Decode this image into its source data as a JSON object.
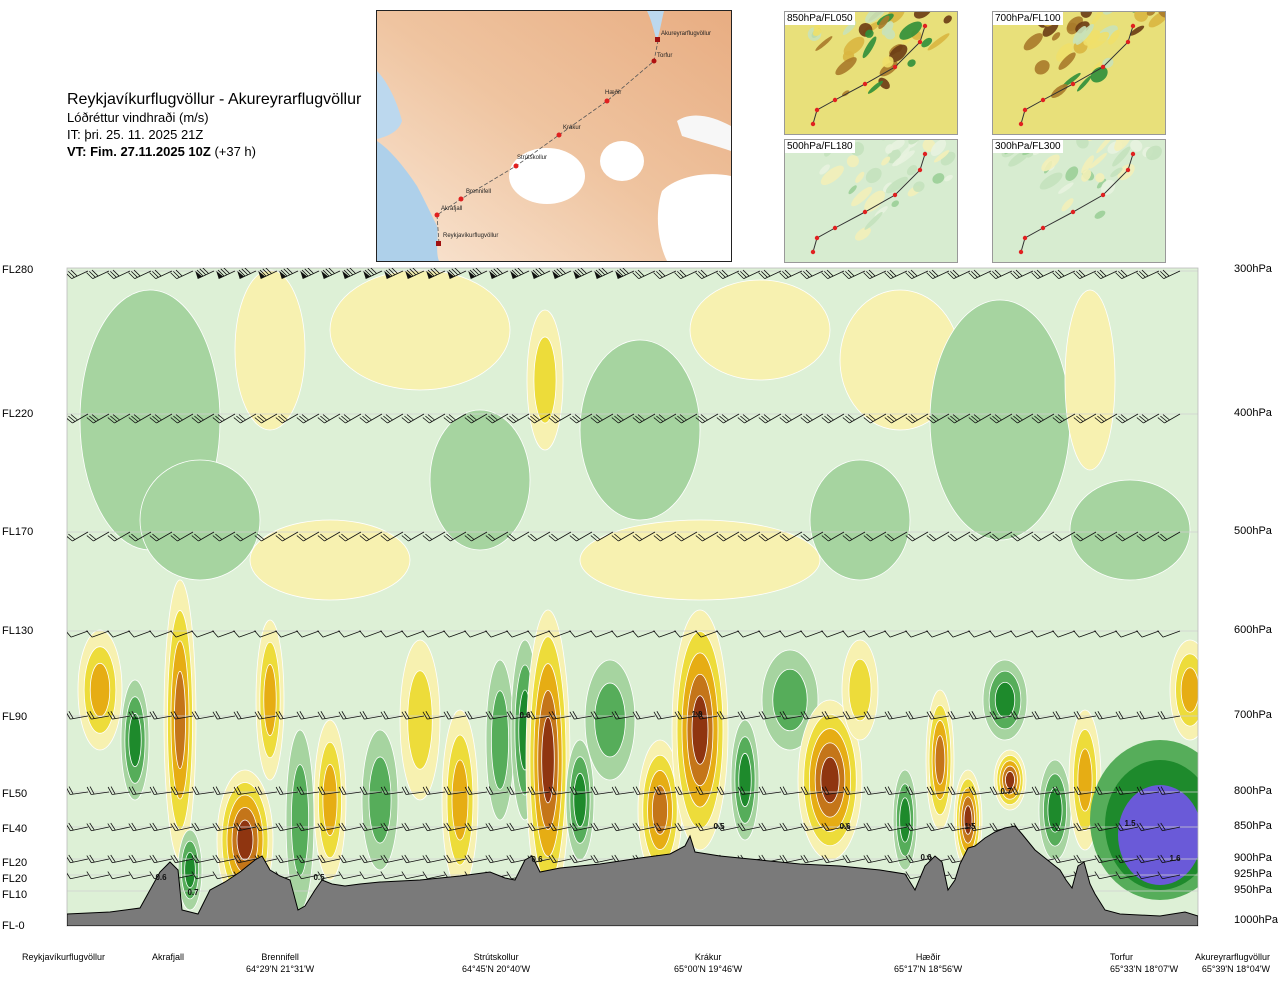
{
  "title": {
    "route": "Reykjavíkurflugvöllur - Akureyrarflugvöllur",
    "parameter": "Lóðréttur vindhraði (m/s)",
    "it": "IT: þri. 25. 11. 2025 21Z",
    "vt_bold": "VT: Fim. 27.11.2025 10Z",
    "vt_rest": "(+37 h)"
  },
  "map": {
    "waypoints": [
      "Akureyrarflugvöllur",
      "Torfur",
      "Hæðir",
      "Krákur",
      "Strútskollur",
      "Brennifell",
      "Akrafjall",
      "Reykjavíkurflugvöllur"
    ]
  },
  "minimaps": [
    {
      "label": "850hPa/FL050",
      "palette": "mixed"
    },
    {
      "label": "700hPa/FL100",
      "palette": "mixed"
    },
    {
      "label": "500hPa/FL180",
      "palette": "green"
    },
    {
      "label": "300hPa/FL300",
      "palette": "green"
    }
  ],
  "chart_data": {
    "type": "heatmap",
    "variable": "vertical wind speed (m/s)",
    "colors": {
      "strong_down": "#6a5ad8",
      "down3": "#1e8a2c",
      "down2": "#56ad5a",
      "down1": "#a6d4a0",
      "neutral": "#ddf0d6",
      "neutral_up": "#f7f1b0",
      "up1": "#eddc3a",
      "up2": "#e6ad14",
      "up3": "#c47519",
      "strong_up": "#8f3510",
      "terrain": "#7a7a7a"
    },
    "levels": [
      {
        "fl": "FL280",
        "hpa": "300hPa"
      },
      {
        "fl": "FL220",
        "hpa": "400hPa"
      },
      {
        "fl": "FL170",
        "hpa": "500hPa"
      },
      {
        "fl": "FL130",
        "hpa": "600hPa"
      },
      {
        "fl": "FL90",
        "hpa": "700hPa"
      },
      {
        "fl": "FL50",
        "hpa": "800hPa"
      },
      {
        "fl": "FL40",
        "hpa": "850hPa"
      },
      {
        "fl": "FL20",
        "hpa": "900hPa"
      },
      {
        "fl": "FL20",
        "hpa": "925hPa"
      },
      {
        "fl": "FL10",
        "hpa": "950hPa"
      },
      {
        "fl": "FL-0",
        "hpa": "1000hPa"
      }
    ],
    "locations": [
      {
        "name": "Reykjavíkurflugvöllur",
        "coord": ""
      },
      {
        "name": "Akrafjall",
        "coord": ""
      },
      {
        "name": "Brennifell",
        "coord": "64°29'N 21°31'W"
      },
      {
        "name": "Strútskollur",
        "coord": "64°45'N 20°40'W"
      },
      {
        "name": "Krákur",
        "coord": "65°00'N 19°46'W"
      },
      {
        "name": "Hæðir",
        "coord": "65°17'N 18°56'W"
      },
      {
        "name": "Torfur",
        "coord": "65°33'N 18°07'W"
      },
      {
        "name": "Akureyrarflugvöllur",
        "coord": "65°39'N 18°04'W"
      }
    ],
    "value_labels": [
      "0.6",
      "0.7",
      "0.5",
      "0.6",
      "0.6",
      "1.0",
      "0.5",
      "0.6",
      "0.6",
      "1.5",
      "0.7",
      "1.5",
      "1.6"
    ]
  }
}
